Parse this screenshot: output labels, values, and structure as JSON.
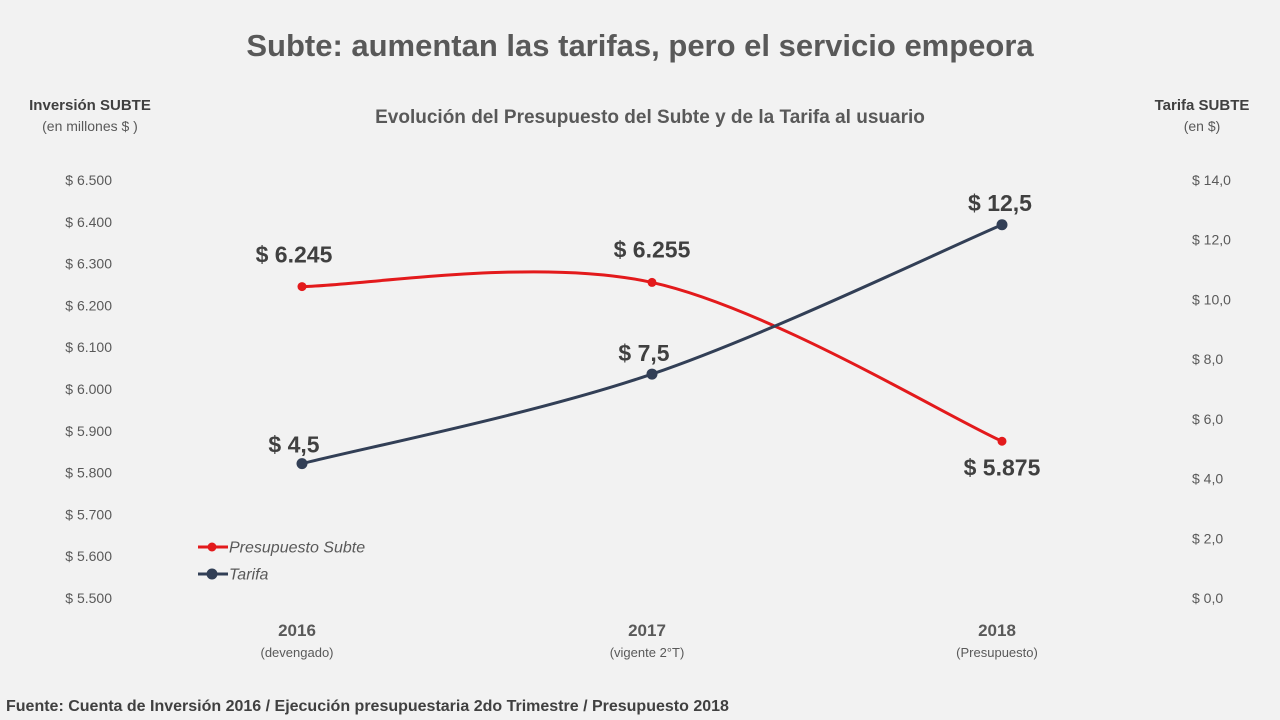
{
  "title": "Subte: aumentan las tarifas, pero el servicio empeora",
  "source": "Fuente: Cuenta de Inversión 2016 / Ejecución presupuestaria 2do Trimestre / Presupuesto 2018",
  "chart_data": {
    "type": "line",
    "title": "Evolución del Presupuesto del Subte y de la Tarifa al usuario",
    "categories": [
      "2016",
      "2017",
      "2018"
    ],
    "category_sublabels": [
      "(devengado)",
      "(vigente 2°T)",
      "(Presupuesto)"
    ],
    "y_left": {
      "label": "Inversión SUBTE",
      "unit": "(en millones $ )",
      "ylim": [
        5500,
        6500
      ],
      "tick_labels": [
        "$ 6.500",
        "$ 6.400",
        "$ 6.300",
        "$ 6.200",
        "$ 6.100",
        "$ 6.000",
        "$ 5.900",
        "$ 5.800",
        "$ 5.700",
        "$ 5.600",
        "$ 5.500"
      ]
    },
    "y_right": {
      "label": "Tarifa SUBTE",
      "unit": "(en $)",
      "ylim": [
        0,
        14
      ],
      "tick_labels": [
        "$ 14,0",
        "$ 12,0",
        "$ 10,0",
        "$ 8,0",
        "$ 6,0",
        "$ 4,0",
        "$ 2,0",
        "$ 0,0"
      ]
    },
    "series": [
      {
        "name": "Presupuesto Subte",
        "axis": "left",
        "color": "#e31a1c",
        "values": [
          6245,
          6255,
          5875
        ],
        "labels": [
          "$ 6.245",
          "$ 6.255",
          "$ 5.875"
        ]
      },
      {
        "name": "Tarifa",
        "axis": "right",
        "color": "#323f56",
        "values": [
          4.5,
          7.5,
          12.5
        ],
        "labels": [
          "$ 4,5",
          "$ 7,5",
          "$ 12,5"
        ]
      }
    ],
    "grid": false,
    "legend": "bottom-left"
  }
}
